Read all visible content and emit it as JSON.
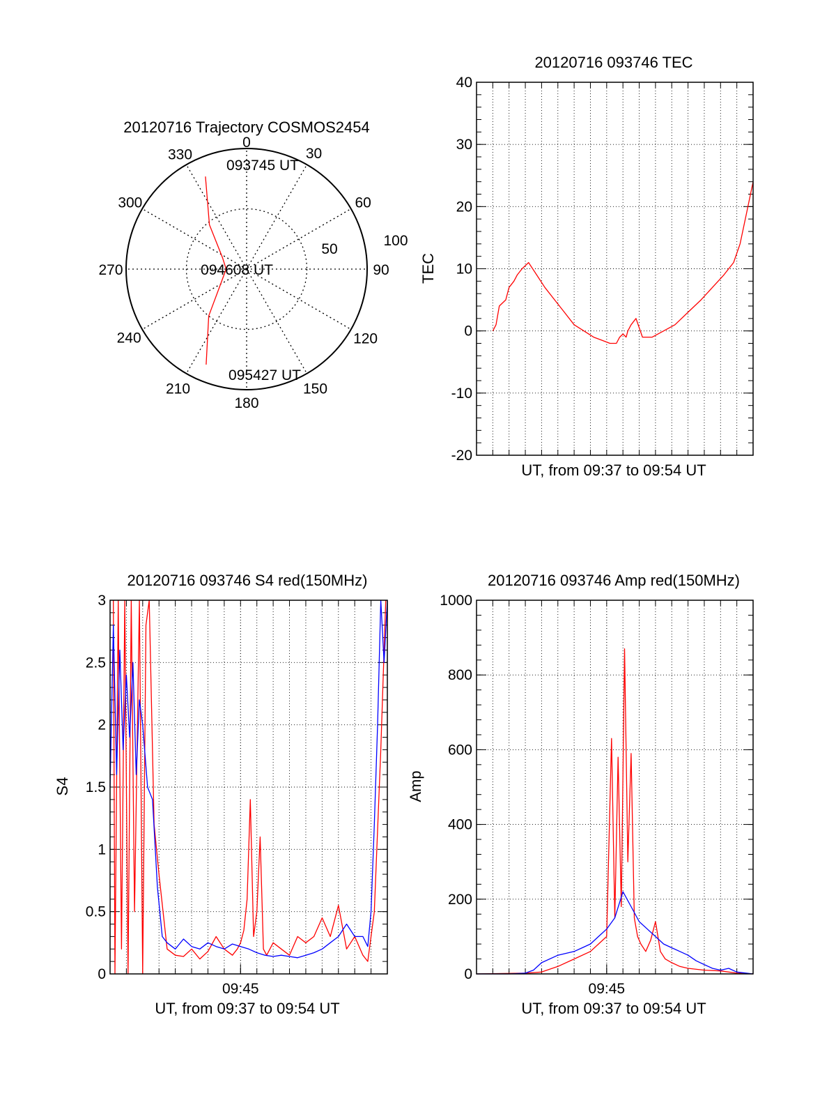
{
  "chart_data": [
    {
      "type": "polar",
      "title": "20120716 Trajectory COSMOS2454",
      "angle_labels": [
        "0",
        "30",
        "60",
        "90",
        "120",
        "150",
        "180",
        "210",
        "240",
        "270",
        "300",
        "330"
      ],
      "radial_labels": [
        "50",
        "100"
      ],
      "radial_range": [
        0,
        100
      ],
      "grid": true,
      "annotations": [
        "093745 UT",
        "094608 UT",
        "095427 UT"
      ],
      "series": [
        {
          "color": "#ff0000",
          "points_azimuth_deg_radius": [
            [
              336,
              84
            ],
            [
              320,
              48
            ],
            [
              295,
              22
            ],
            [
              270,
              17
            ],
            [
              244,
              23
            ],
            [
              219,
              50
            ],
            [
              203,
              86
            ]
          ]
        }
      ]
    },
    {
      "type": "line",
      "title": "20120716 093746 TEC",
      "xlabel": "UT, from 09:37 to 09:54 UT",
      "ylabel": "TEC",
      "xlim_minutes": [
        37,
        54
      ],
      "ylim": [
        -20,
        40
      ],
      "yticks": [
        "-20",
        "-10",
        "0",
        "10",
        "20",
        "30",
        "40"
      ],
      "grid": true,
      "series": [
        {
          "color": "#ff0000",
          "x_minutes": [
            38,
            38.2,
            38.4,
            38.8,
            39.0,
            39.3,
            39.5,
            39.8,
            40.2,
            40.7,
            41.2,
            41.8,
            42.4,
            43.0,
            43.6,
            44.2,
            44.7,
            45.2,
            45.4,
            45.6,
            45.8,
            46.0,
            46.2,
            46.3,
            46.5,
            46.8,
            47.2,
            47.8,
            48.5,
            49.2,
            50.0,
            50.8,
            51.5,
            52.2,
            52.8,
            53.2,
            53.6,
            54.0
          ],
          "y": [
            0,
            1,
            4,
            5,
            7,
            8,
            9,
            10,
            11,
            9,
            7,
            5,
            3,
            1,
            0,
            -1,
            -1.5,
            -2,
            -2,
            -2,
            -1,
            -0.5,
            -1,
            0,
            1,
            2,
            -1,
            -1,
            0,
            1,
            3,
            5,
            7,
            9,
            11,
            14,
            19,
            24
          ]
        }
      ]
    },
    {
      "type": "line",
      "title": "20120716 093746 S4 red(150MHz)",
      "xlabel": "UT, from 09:37 to 09:54 UT",
      "ylabel": "S4",
      "xlim_minutes": [
        37,
        54
      ],
      "xticks": [
        "09:45"
      ],
      "ylim": [
        0,
        3
      ],
      "yticks": [
        "0",
        "0.5",
        "1",
        "1.5",
        "2",
        "2.5",
        "3"
      ],
      "grid": true,
      "series": [
        {
          "color": "#ff0000",
          "x_minutes": [
            37.2,
            37.3,
            37.5,
            37.7,
            37.9,
            38.1,
            38.3,
            38.5,
            38.8,
            39.0,
            39.2,
            39.4,
            39.7,
            40.0,
            40.5,
            41.0,
            41.5,
            42.0,
            42.5,
            43.0,
            43.5,
            44.0,
            44.5,
            44.8,
            45.0,
            45.2,
            45.4,
            45.6,
            45.8,
            46.0,
            46.2,
            46.4,
            46.6,
            47.0,
            47.5,
            48.0,
            48.5,
            49.0,
            49.5,
            50.0,
            50.5,
            51.0,
            51.5,
            52.0,
            52.5,
            52.8,
            53.2,
            53.6,
            53.9
          ],
          "y": [
            3,
            0,
            3,
            0.2,
            3,
            0,
            3,
            0.5,
            3,
            0,
            2.8,
            3,
            1.2,
            0.8,
            0.2,
            0.15,
            0.14,
            0.2,
            0.12,
            0.18,
            0.3,
            0.2,
            0.15,
            0.2,
            0.25,
            0.35,
            0.6,
            1.4,
            0.3,
            0.5,
            1.1,
            0.2,
            0.15,
            0.25,
            0.2,
            0.15,
            0.3,
            0.25,
            0.3,
            0.45,
            0.3,
            0.55,
            0.2,
            0.3,
            0.15,
            0.1,
            0.5,
            1.8,
            3
          ]
        },
        {
          "color": "#0000ff",
          "x_minutes": [
            37.0,
            37.2,
            37.4,
            37.6,
            37.8,
            38.0,
            38.2,
            38.4,
            38.6,
            38.8,
            39.0,
            39.3,
            39.6,
            39.9,
            40.2,
            40.5,
            41.0,
            41.5,
            42.0,
            42.5,
            43.0,
            43.5,
            44.0,
            44.5,
            45.0,
            45.5,
            46.0,
            46.5,
            47.0,
            47.5,
            48.0,
            48.5,
            49.0,
            49.5,
            50.0,
            50.5,
            51.0,
            51.5,
            52.0,
            52.5,
            52.8,
            53.0,
            53.2,
            53.4,
            53.6,
            53.8,
            54.0
          ],
          "y": [
            1.5,
            2.8,
            1.6,
            2.6,
            1.8,
            2.4,
            1.9,
            2.5,
            1.6,
            2.2,
            2.0,
            1.5,
            1.4,
            0.7,
            0.3,
            0.25,
            0.2,
            0.28,
            0.22,
            0.2,
            0.25,
            0.22,
            0.2,
            0.24,
            0.22,
            0.2,
            0.17,
            0.15,
            0.14,
            0.15,
            0.14,
            0.13,
            0.15,
            0.17,
            0.2,
            0.25,
            0.3,
            0.4,
            0.3,
            0.3,
            0.22,
            0.5,
            1.2,
            2.0,
            3,
            2.5,
            3
          ]
        }
      ]
    },
    {
      "type": "line",
      "title": "20120716 093746 Amp red(150MHz)",
      "xlabel": "UT, from 09:37 to 09:54 UT",
      "ylabel": "Amp",
      "xlim_minutes": [
        37,
        54
      ],
      "xticks": [
        "09:45"
      ],
      "ylim": [
        0,
        1000
      ],
      "yticks": [
        "0",
        "200",
        "400",
        "600",
        "800",
        "1000"
      ],
      "grid": true,
      "series": [
        {
          "color": "#ff0000",
          "x_minutes": [
            37,
            40,
            41,
            42,
            43,
            44,
            44.5,
            45.0,
            45.3,
            45.5,
            45.7,
            45.9,
            46.1,
            46.3,
            46.5,
            46.7,
            46.9,
            47.1,
            47.4,
            47.7,
            48.0,
            48.3,
            48.6,
            49.0,
            49.5,
            50,
            51,
            52,
            53,
            54
          ],
          "y": [
            0,
            2,
            5,
            20,
            40,
            60,
            80,
            100,
            630,
            150,
            580,
            180,
            870,
            300,
            590,
            150,
            100,
            80,
            60,
            90,
            140,
            60,
            40,
            30,
            20,
            15,
            10,
            8,
            2,
            0
          ]
        },
        {
          "color": "#0000ff",
          "x_minutes": [
            37,
            39,
            40,
            40.5,
            41,
            42,
            43,
            43.5,
            44,
            44.5,
            45,
            45.5,
            46,
            46.5,
            47,
            47.5,
            48,
            48.5,
            49,
            49.5,
            50,
            50.5,
            51,
            51.5,
            52,
            52.5,
            53,
            54
          ],
          "y": [
            0,
            0,
            2,
            10,
            30,
            50,
            60,
            70,
            80,
            100,
            120,
            150,
            220,
            180,
            140,
            120,
            100,
            80,
            70,
            60,
            50,
            35,
            25,
            15,
            10,
            15,
            5,
            0
          ]
        }
      ]
    }
  ]
}
